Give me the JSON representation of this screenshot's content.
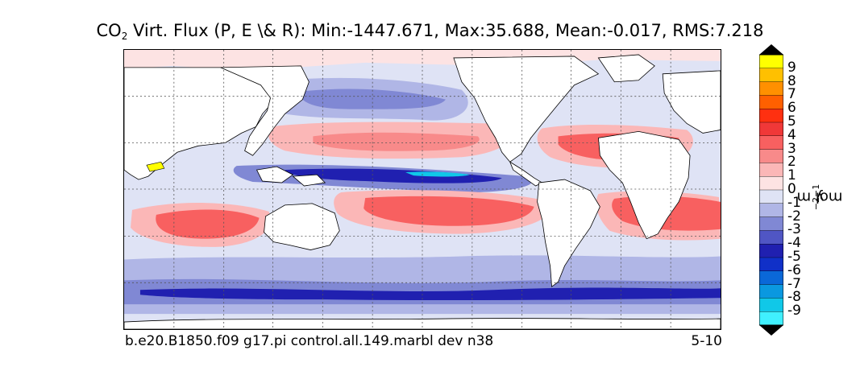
{
  "title": {
    "prefix": "CO",
    "sub": "2",
    "rest": " Virt. Flux (P, E \\& R): Min:-1447.671, Max:35.688, Mean:-0.017, RMS:7.218"
  },
  "caption": {
    "left": "b.e20.B1850.f09 g17.pi control.all.149.marbl dev n38",
    "right": "5-10"
  },
  "colorbar": {
    "ticks": [
      "9",
      "8",
      "7",
      "6",
      "5",
      "4",
      "3",
      "2",
      "1",
      "0",
      "-1",
      "-2",
      "-3",
      "-4",
      "-5",
      "-6",
      "-7",
      "-8",
      "-9"
    ],
    "colors": [
      "#ffff00",
      "#ffc000",
      "#ff9000",
      "#ff6000",
      "#ff3010",
      "#f03838",
      "#f86060",
      "#f88a8a",
      "#fbb7b7",
      "#fde3e3",
      "#dfe3f5",
      "#b0b6e6",
      "#8088d4",
      "#5056c4",
      "#2020b0",
      "#1030c8",
      "#0a68d8",
      "#0a98e0",
      "#10c8e8",
      "#40f0ff"
    ],
    "label_main": "mol m",
    "label_exp1": "−2",
    "label_mid": " y",
    "label_exp2": "−1"
  },
  "map": {
    "land_color": "#ffffff",
    "coast_color": "#000000",
    "grid_style": "dotted"
  }
}
